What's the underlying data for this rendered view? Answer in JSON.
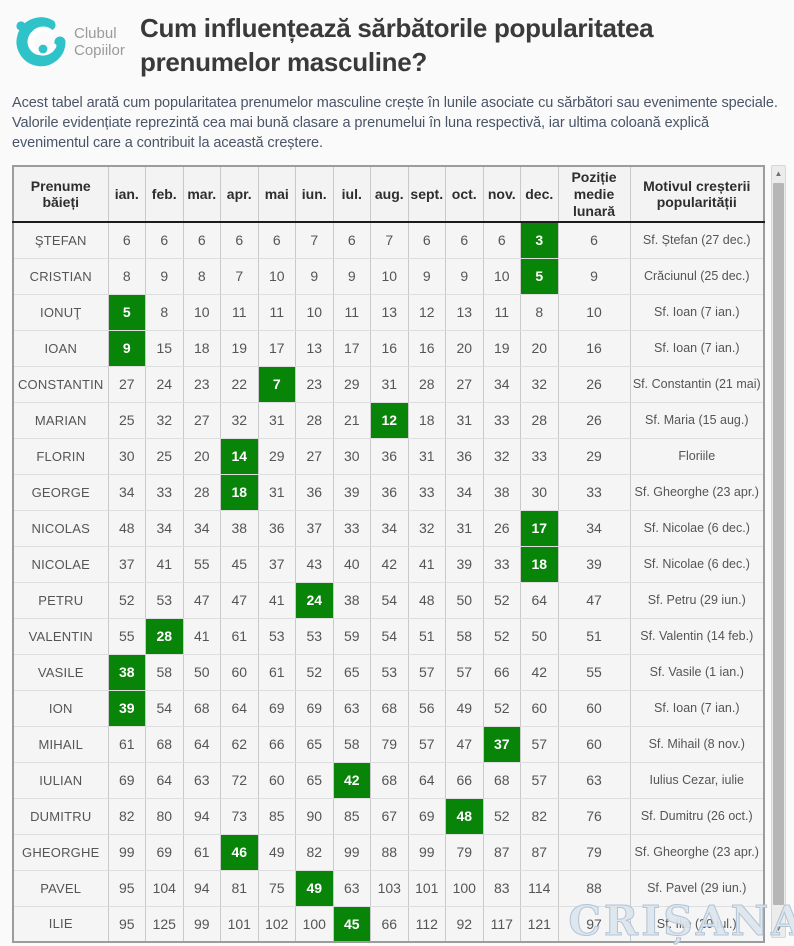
{
  "logo": {
    "line1": "Clubul",
    "line2": "Copiilor"
  },
  "header": {
    "title": "Cum influențează sărbătorile popularitatea prenumelor masculine?",
    "description": "Acest tabel arată cum popularitatea prenumelor masculine crește în lunile asociate cu sărbători sau evenimente speciale. Valorile evidențiate reprezintă cea mai bună clasare a prenumelui în luna respectivă, iar ultima coloană explică evenimentul care a contribuit la această creștere."
  },
  "watermark": "CRIȘANA",
  "colors": {
    "highlight_green": "#088408",
    "logo_teal": "#2fc2c8",
    "header_border_dark": "#1c1c1c"
  },
  "scrollbar": {
    "up_glyph": "▲",
    "down_glyph": "▼"
  },
  "table": {
    "name_header": "Prenume băieți",
    "month_headers": [
      "ian.",
      "feb.",
      "mar.",
      "apr.",
      "mai",
      "iun.",
      "iul.",
      "aug.",
      "sept.",
      "oct.",
      "nov.",
      "dec."
    ],
    "avg_header": "Poziție medie lunară",
    "reason_header": "Motivul creșterii popularității",
    "rows": [
      {
        "name": "ŞTEFAN",
        "months": [
          6,
          6,
          6,
          6,
          6,
          7,
          6,
          7,
          6,
          6,
          6,
          3
        ],
        "highlight_month": 11,
        "avg": 6,
        "reason": "Sf. Ștefan (27 dec.)"
      },
      {
        "name": "CRISTIAN",
        "months": [
          8,
          9,
          8,
          7,
          10,
          9,
          9,
          10,
          9,
          9,
          10,
          5
        ],
        "highlight_month": 11,
        "avg": 9,
        "reason": "Crăciunul (25 dec.)"
      },
      {
        "name": "IONUŢ",
        "months": [
          5,
          8,
          10,
          11,
          11,
          10,
          11,
          13,
          12,
          13,
          11,
          8
        ],
        "highlight_month": 0,
        "avg": 10,
        "reason": "Sf. Ioan (7 ian.)"
      },
      {
        "name": "IOAN",
        "months": [
          9,
          15,
          18,
          19,
          17,
          13,
          17,
          16,
          16,
          20,
          19,
          20
        ],
        "highlight_month": 0,
        "avg": 16,
        "reason": "Sf. Ioan (7 ian.)"
      },
      {
        "name": "CONSTANTIN",
        "months": [
          27,
          24,
          23,
          22,
          7,
          23,
          29,
          31,
          28,
          27,
          34,
          32
        ],
        "highlight_month": 4,
        "avg": 26,
        "reason": "Sf. Constantin (21 mai)"
      },
      {
        "name": "MARIAN",
        "months": [
          25,
          32,
          27,
          32,
          31,
          28,
          21,
          12,
          18,
          31,
          33,
          28
        ],
        "highlight_month": 7,
        "avg": 26,
        "reason": "Sf. Maria (15 aug.)"
      },
      {
        "name": "FLORIN",
        "months": [
          30,
          25,
          20,
          14,
          29,
          27,
          30,
          36,
          31,
          36,
          32,
          33
        ],
        "highlight_month": 3,
        "avg": 29,
        "reason": "Floriile"
      },
      {
        "name": "GEORGE",
        "months": [
          34,
          33,
          28,
          18,
          31,
          36,
          39,
          36,
          33,
          34,
          38,
          30
        ],
        "highlight_month": 3,
        "avg": 33,
        "reason": "Sf. Gheorghe (23 apr.)"
      },
      {
        "name": "NICOLAS",
        "months": [
          48,
          34,
          34,
          38,
          36,
          37,
          33,
          34,
          32,
          31,
          26,
          17
        ],
        "highlight_month": 11,
        "avg": 34,
        "reason": "Sf. Nicolae (6 dec.)"
      },
      {
        "name": "NICOLAE",
        "months": [
          37,
          41,
          55,
          45,
          37,
          43,
          40,
          42,
          41,
          39,
          33,
          18
        ],
        "highlight_month": 11,
        "avg": 39,
        "reason": "Sf. Nicolae (6 dec.)"
      },
      {
        "name": "PETRU",
        "months": [
          52,
          53,
          47,
          47,
          41,
          24,
          38,
          54,
          48,
          50,
          52,
          64
        ],
        "highlight_month": 5,
        "avg": 47,
        "reason": "Sf. Petru (29 iun.)"
      },
      {
        "name": "VALENTIN",
        "months": [
          55,
          28,
          41,
          61,
          53,
          53,
          59,
          54,
          51,
          58,
          52,
          50
        ],
        "highlight_month": 1,
        "avg": 51,
        "reason": "Sf. Valentin (14 feb.)"
      },
      {
        "name": "VASILE",
        "months": [
          38,
          58,
          50,
          60,
          61,
          52,
          65,
          53,
          57,
          57,
          66,
          42
        ],
        "highlight_month": 0,
        "avg": 55,
        "reason": "Sf. Vasile (1 ian.)"
      },
      {
        "name": "ION",
        "months": [
          39,
          54,
          68,
          64,
          69,
          69,
          63,
          68,
          56,
          49,
          52,
          60
        ],
        "highlight_month": 0,
        "avg": 60,
        "reason": "Sf. Ioan (7 ian.)"
      },
      {
        "name": "MIHAIL",
        "months": [
          61,
          68,
          64,
          62,
          66,
          65,
          58,
          79,
          57,
          47,
          37,
          57
        ],
        "highlight_month": 10,
        "avg": 60,
        "reason": "Sf. Mihail (8 nov.)"
      },
      {
        "name": "IULIAN",
        "months": [
          69,
          64,
          63,
          72,
          60,
          65,
          42,
          68,
          64,
          66,
          68,
          57
        ],
        "highlight_month": 6,
        "avg": 63,
        "reason": "Iulius Cezar, iulie"
      },
      {
        "name": "DUMITRU",
        "months": [
          82,
          80,
          94,
          73,
          85,
          90,
          85,
          67,
          69,
          48,
          52,
          82
        ],
        "highlight_month": 9,
        "avg": 76,
        "reason": "Sf. Dumitru (26 oct.)"
      },
      {
        "name": "GHEORGHE",
        "months": [
          99,
          69,
          61,
          46,
          49,
          82,
          99,
          88,
          99,
          79,
          87,
          87
        ],
        "highlight_month": 3,
        "avg": 79,
        "reason": "Sf. Gheorghe (23 apr.)"
      },
      {
        "name": "PAVEL",
        "months": [
          95,
          104,
          94,
          81,
          75,
          49,
          63,
          103,
          101,
          100,
          83,
          114
        ],
        "highlight_month": 5,
        "avg": 88,
        "reason": "Sf. Pavel (29 iun.)"
      },
      {
        "name": "ILIE",
        "months": [
          95,
          125,
          99,
          101,
          102,
          100,
          45,
          66,
          112,
          92,
          117,
          121
        ],
        "highlight_month": 6,
        "avg": 97,
        "reason": "Sf. Ilie (20 iul.)"
      }
    ]
  }
}
